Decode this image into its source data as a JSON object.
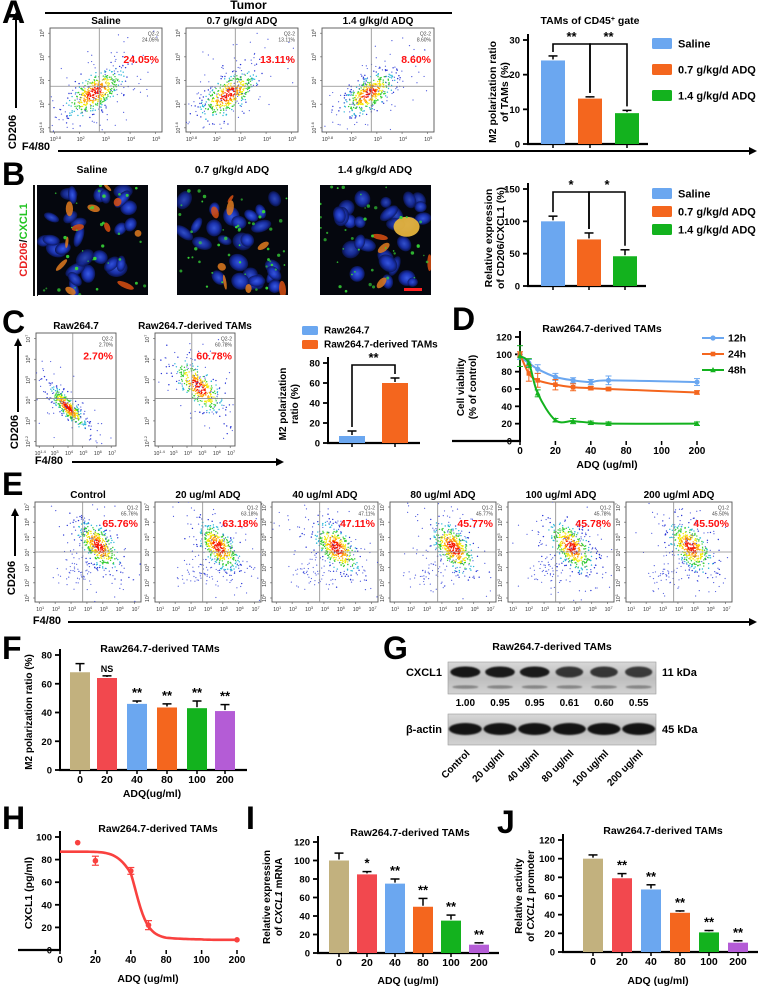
{
  "colors": {
    "blue": "#6BA7F0",
    "orange": "#F4661E",
    "green": "#13B21E",
    "tan": "#C2B17E",
    "red": "#F2484E",
    "purple": "#B45CD6",
    "flow_pct": "#FF1010"
  },
  "panelA": {
    "label": "A",
    "header": "Tumor"
  },
  "panelB": {
    "label": "B",
    "row_label": {
      "red": "CD206",
      "sep": "/",
      "green": "CXCL1"
    },
    "images": [
      {
        "title": "Saline"
      },
      {
        "title": "0.7 g/kg/d ADQ"
      },
      {
        "title": "1.4 g/kg/d ADQ"
      }
    ]
  },
  "panelC": {
    "label": "C"
  },
  "panelD": {
    "label": "D"
  },
  "panelE": {
    "label": "E"
  },
  "panelF": {
    "label": "F"
  },
  "panelG": {
    "label": "G"
  },
  "panelH": {
    "label": "H"
  },
  "panelI": {
    "label": "I"
  },
  "panelJ": {
    "label": "J"
  },
  "flow_groups": [
    {
      "id": "A",
      "x_label": "F4/80",
      "y_label": "CD206",
      "gate": "Q2-2",
      "xticks": [
        "0.8",
        "2",
        "3",
        "4",
        "5"
      ],
      "yticks": [
        "6",
        "5",
        "4",
        "3",
        "1.6"
      ],
      "plots": [
        {
          "title": "Saline",
          "pct": "24.05%"
        },
        {
          "title": "0.7 g/kg/d ADQ",
          "pct": "13.11%"
        },
        {
          "title": "1.4 g/kg/d ADQ",
          "pct": "8.60%"
        }
      ]
    },
    {
      "id": "C",
      "x_label": "F4/80",
      "y_label": "CD206",
      "gate": "Q2-2",
      "xticks": [
        "1.4",
        "3",
        "4",
        "5",
        "6",
        "7"
      ],
      "yticks": [
        "7",
        "6",
        "5",
        "4",
        "3",
        "1.2"
      ],
      "plots": [
        {
          "title": "Raw264.7",
          "pct": "2.70%"
        },
        {
          "title": "Raw264.7-derived TAMs",
          "pct": "60.78%"
        }
      ]
    },
    {
      "id": "E",
      "x_label": "F4/80",
      "y_label": "CD206",
      "gate": "Q1-2",
      "xticks": [
        "1",
        "2",
        "3",
        "4",
        "5",
        "6",
        "7"
      ],
      "yticks": [
        "7",
        "6",
        "5",
        "4",
        "3",
        "2",
        "1"
      ],
      "plots": [
        {
          "title": "Control",
          "pct": "65.76%"
        },
        {
          "title": "20 ug/ml ADQ",
          "pct": "63.18%"
        },
        {
          "title": "40 ug/ml ADQ",
          "pct": "47.11%"
        },
        {
          "title": "80 ug/ml ADQ",
          "pct": "45.77%"
        },
        {
          "title": "100 ug/ml ADQ",
          "pct": "45.78%"
        },
        {
          "title": "200 ug/ml ADQ",
          "pct": "45.50%"
        }
      ]
    }
  ],
  "western_blot": {
    "title": "Raw264.7-derived TAMs",
    "rows": [
      {
        "protein": "CXCL1",
        "kda": "11 kDa",
        "values": [
          "1.00",
          "0.95",
          "0.95",
          "0.61",
          "0.60",
          "0.55"
        ]
      },
      {
        "protein": "β-actin",
        "kda": "45 kDa",
        "values": []
      }
    ],
    "lanes": [
      "Control",
      "20 ug/ml",
      "40 ug/ml",
      "80 ug/ml",
      "100 ug/ml",
      "200 ug/ml"
    ]
  },
  "chart_data": [
    {
      "id": "A",
      "type": "bar",
      "title": {
        "pre": "TAMs of CD45",
        "sup": "+",
        "post": " gate"
      },
      "ylabel": [
        "M2 polarization ratio",
        "of TAMs (%)"
      ],
      "ylim": [
        0,
        30
      ],
      "ystep": 10,
      "categories": [
        "Saline",
        "0.7 g/kg/d ADQ",
        "1.4 g/kg/d ADQ"
      ],
      "values": [
        24.1,
        13.1,
        8.9
      ],
      "errors": [
        1.3,
        0.5,
        0.8
      ],
      "colors": [
        "blue",
        "orange",
        "green"
      ],
      "brackets": [
        {
          "a": 0,
          "b": 1,
          "label": "**"
        },
        {
          "a": 1,
          "b": 2,
          "label": "**"
        }
      ],
      "legend": [
        "Saline",
        "0.7 g/kg/d ADQ",
        "1.4 g/kg/d ADQ"
      ],
      "legend_colors": [
        "blue",
        "orange",
        "green"
      ],
      "show_xticklabels": false,
      "grid": false,
      "legend_position": "right"
    },
    {
      "id": "B",
      "type": "bar",
      "title": null,
      "ylabel": [
        "Relative expression",
        "of CD206/CXCL1 (%)"
      ],
      "ylim": [
        0,
        150
      ],
      "ystep": 50,
      "categories": [
        "Saline",
        "0.7 g/kg/d ADQ",
        "1.4 g/kg/d ADQ"
      ],
      "values": [
        100,
        72,
        46
      ],
      "errors": [
        8,
        10,
        10
      ],
      "colors": [
        "blue",
        "orange",
        "green"
      ],
      "brackets": [
        {
          "a": 0,
          "b": 1,
          "label": "*"
        },
        {
          "a": 1,
          "b": 2,
          "label": "*"
        }
      ],
      "legend": [
        "Saline",
        "0.7 g/kg/d ADQ",
        "1.4 g/kg/d ADQ"
      ],
      "legend_colors": [
        "blue",
        "orange",
        "green"
      ],
      "show_xticklabels": false,
      "grid": false,
      "legend_position": "right"
    },
    {
      "id": "C",
      "type": "bar",
      "title": null,
      "ylabel": [
        "M2 polarization",
        "ratio (%)"
      ],
      "ylim": [
        0,
        80
      ],
      "ystep": 20,
      "categories": [
        "Raw264.7",
        "Raw264.7-derived TAMs"
      ],
      "values": [
        7,
        60
      ],
      "errors": [
        5,
        5
      ],
      "colors": [
        "blue",
        "orange"
      ],
      "brackets": [
        {
          "a": 0,
          "b": 1,
          "label": "**"
        }
      ],
      "legend": [
        "Raw264.7",
        "Raw264.7-derived TAMs"
      ],
      "legend_colors": [
        "blue",
        "orange"
      ],
      "show_xticklabels": false,
      "grid": false,
      "legend_position": "top"
    },
    {
      "id": "D",
      "type": "line",
      "title": "Raw264.7-derived TAMs",
      "ylabel": [
        "Cell viability",
        "(% of control)"
      ],
      "ylim": [
        0,
        120
      ],
      "ystep": 20,
      "xlabel": "ADQ (ug/ml)",
      "xticks": [
        0,
        20,
        40,
        80,
        100,
        200
      ],
      "series": [
        {
          "name": "12h",
          "color": "blue",
          "marker": "circle",
          "x": [
            0,
            5,
            10,
            20,
            30,
            40,
            60,
            200
          ],
          "values": [
            97,
            90,
            83,
            74,
            70,
            68,
            70,
            68
          ],
          "errors": [
            3,
            4,
            5,
            4,
            3,
            3,
            5,
            4
          ]
        },
        {
          "name": "24h",
          "color": "orange",
          "marker": "square",
          "x": [
            0,
            5,
            10,
            20,
            30,
            40,
            60,
            200
          ],
          "values": [
            100,
            78,
            70,
            65,
            62,
            61,
            60,
            56
          ],
          "errors": [
            3,
            9,
            8,
            6,
            4,
            2,
            2,
            2
          ]
        },
        {
          "name": "48h",
          "color": "green",
          "marker": "triangle",
          "x": [
            0,
            5,
            10,
            20,
            30,
            40,
            60,
            200
          ],
          "values": [
            98,
            90,
            55,
            24,
            23,
            21,
            20,
            20
          ],
          "errors": [
            12,
            5,
            4,
            2,
            3,
            2,
            2,
            2
          ]
        }
      ],
      "grid": false,
      "legend_position": "right"
    },
    {
      "id": "F",
      "type": "bar",
      "title": "Raw264.7-derived TAMs",
      "ylabel": [
        "M2 polarization ratio (%)"
      ],
      "ylim": [
        0,
        80
      ],
      "ystep": 20,
      "xlabel": "ADQ(ug/ml)",
      "categories": [
        "0",
        "20",
        "40",
        "80",
        "100",
        "200"
      ],
      "values": [
        68,
        64,
        46,
        43.5,
        43,
        41
      ],
      "errors": [
        6,
        1.5,
        2,
        2.5,
        5,
        4.5
      ],
      "colors": [
        "tan",
        "red",
        "blue",
        "orange",
        "green",
        "purple"
      ],
      "sig": [
        "",
        "NS",
        "**",
        "**",
        "**",
        "**"
      ],
      "show_xticklabels": true,
      "grid": false
    },
    {
      "id": "H",
      "type": "scatter-curve",
      "title": "Raw264.7-derived TAMs",
      "ylabel": [
        "CXCL1 (pg/ml)"
      ],
      "ylim": [
        0,
        100
      ],
      "ystep": 20,
      "xlabel": "ADQ (ug/ml)",
      "xticks": [
        0,
        20,
        40,
        80,
        100,
        200
      ],
      "points": {
        "x": [
          10,
          20,
          40,
          60,
          200
        ],
        "y": [
          95,
          79,
          70,
          22,
          9
        ],
        "errors": [
          0,
          4,
          3,
          4,
          0
        ]
      },
      "curve": {
        "top": 87,
        "bottom": 9,
        "ec50": 47,
        "hill": 7
      },
      "color": "#F9413F",
      "grid": false
    },
    {
      "id": "I",
      "type": "bar",
      "title": "Raw264.7-derived TAMs",
      "ylabel": [
        "Relative expression",
        "of |CXCL1| mRNA"
      ],
      "ylim": [
        0,
        120
      ],
      "ystep": 20,
      "xlabel": "ADQ (ug/ml)",
      "categories": [
        "0",
        "20",
        "40",
        "80",
        "100",
        "200"
      ],
      "values": [
        100,
        85,
        75,
        50,
        35,
        9
      ],
      "errors": [
        8,
        3,
        5,
        9,
        6,
        2
      ],
      "colors": [
        "tan",
        "red",
        "blue",
        "orange",
        "green",
        "purple"
      ],
      "sig": [
        "",
        "*",
        "**",
        "**",
        "**",
        "**"
      ],
      "show_xticklabels": true,
      "grid": false
    },
    {
      "id": "J",
      "type": "bar",
      "title": "Raw264.7-derived TAMs",
      "ylabel": [
        "Relative activity",
        "of |CXCL1| promoter"
      ],
      "ylim": [
        0,
        120
      ],
      "ystep": 20,
      "xlabel": "ADQ (ug/ml)",
      "categories": [
        "0",
        "20",
        "40",
        "80",
        "100",
        "200"
      ],
      "values": [
        100,
        79,
        67,
        42,
        21,
        10
      ],
      "errors": [
        4,
        5,
        5,
        2,
        2,
        2
      ],
      "colors": [
        "tan",
        "red",
        "blue",
        "orange",
        "green",
        "purple"
      ],
      "sig": [
        "",
        "**",
        "**",
        "**",
        "**",
        "**"
      ],
      "show_xticklabels": true,
      "grid": false
    }
  ]
}
